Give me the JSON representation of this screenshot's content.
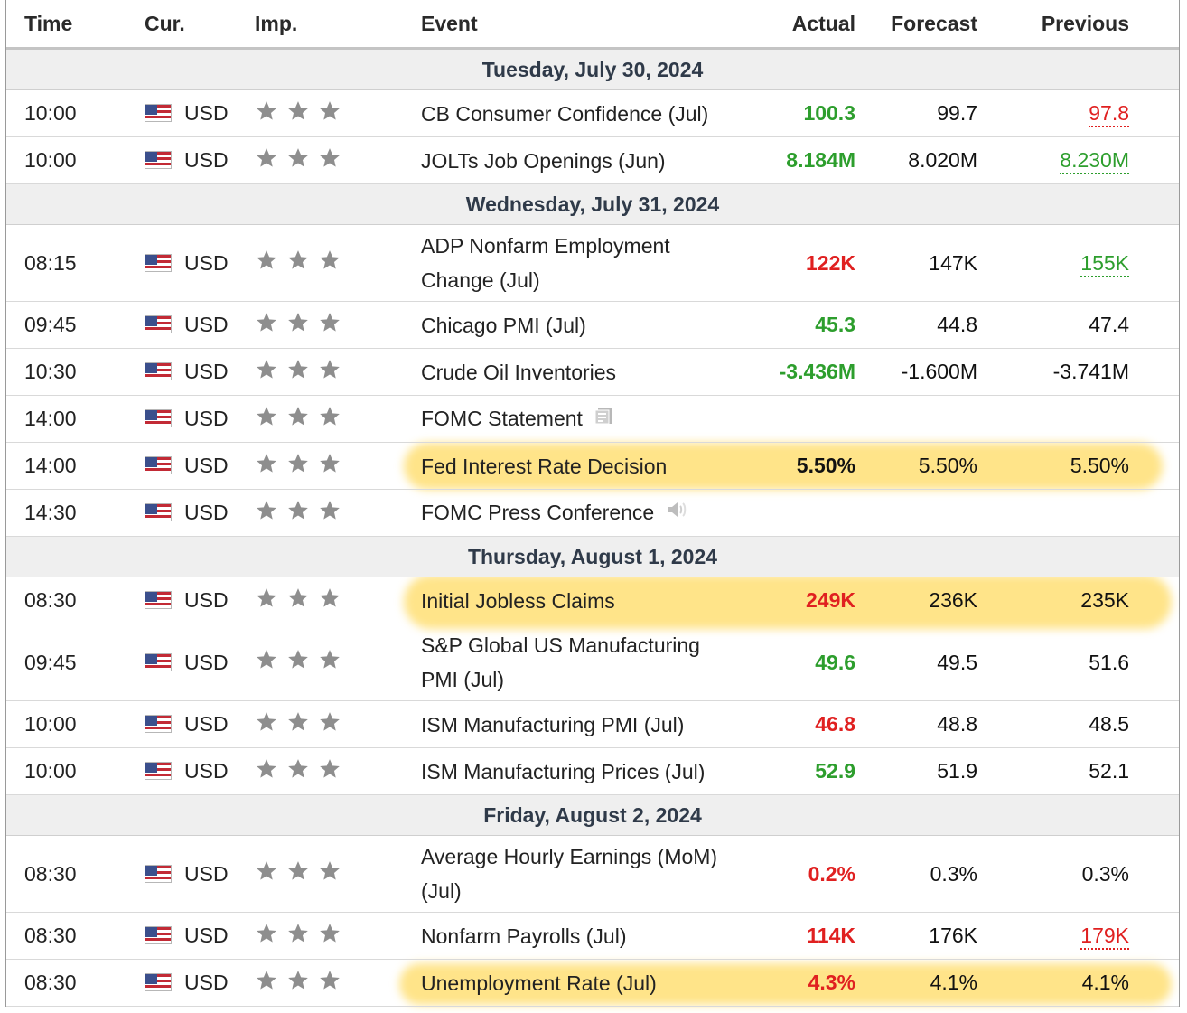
{
  "header": {
    "time": "Time",
    "currency": "Cur.",
    "importance": "Imp.",
    "event": "Event",
    "actual": "Actual",
    "forecast": "Forecast",
    "previous": "Previous"
  },
  "colors": {
    "positive": "#2d9e2d",
    "negative": "#e02020",
    "highlight": "#ffcd28",
    "day_header_bg": "#efefef"
  },
  "days": [
    {
      "label": "Tuesday, July 30, 2024",
      "events": [
        {
          "time": "10:00",
          "currency": "USD",
          "importance_stars": 3,
          "event": "CB Consumer Confidence (Jul)",
          "actual": "100.3",
          "actual_color": "green",
          "forecast": "99.7",
          "previous": "97.8",
          "previous_color": "red",
          "previous_revised": true
        },
        {
          "time": "10:00",
          "currency": "USD",
          "importance_stars": 3,
          "event": "JOLTs Job Openings (Jun)",
          "actual": "8.184M",
          "actual_color": "green",
          "forecast": "8.020M",
          "previous": "8.230M",
          "previous_color": "green",
          "previous_revised": true
        }
      ]
    },
    {
      "label": "Wednesday, July 31, 2024",
      "events": [
        {
          "time": "08:15",
          "currency": "USD",
          "importance_stars": 3,
          "event_line1": "ADP Nonfarm Employment",
          "event_line2": "Change (Jul)",
          "actual": "122K",
          "actual_color": "red",
          "forecast": "147K",
          "previous": "155K",
          "previous_color": "green",
          "previous_revised": true
        },
        {
          "time": "09:45",
          "currency": "USD",
          "importance_stars": 3,
          "event": "Chicago PMI (Jul)",
          "actual": "45.3",
          "actual_color": "green",
          "forecast": "44.8",
          "previous": "47.4"
        },
        {
          "time": "10:30",
          "currency": "USD",
          "importance_stars": 3,
          "event": "Crude Oil Inventories",
          "actual": "-3.436M",
          "actual_color": "green",
          "forecast": "-1.600M",
          "previous": "-3.741M"
        },
        {
          "time": "14:00",
          "currency": "USD",
          "importance_stars": 3,
          "event": "FOMC Statement",
          "icon": "document-icon",
          "actual": "",
          "forecast": "",
          "previous": ""
        },
        {
          "time": "14:00",
          "currency": "USD",
          "importance_stars": 3,
          "event": "Fed Interest Rate Decision",
          "actual": "5.50%",
          "actual_color": "black",
          "forecast": "5.50%",
          "previous": "5.50%",
          "highlighted": true
        },
        {
          "time": "14:30",
          "currency": "USD",
          "importance_stars": 3,
          "event": "FOMC Press Conference",
          "icon": "speaker-icon",
          "actual": "",
          "forecast": "",
          "previous": ""
        }
      ]
    },
    {
      "label": "Thursday, August 1, 2024",
      "events": [
        {
          "time": "08:30",
          "currency": "USD",
          "importance_stars": 3,
          "event": "Initial Jobless Claims",
          "actual": "249K",
          "actual_color": "red",
          "forecast": "236K",
          "previous": "235K",
          "highlighted": true
        },
        {
          "time": "09:45",
          "currency": "USD",
          "importance_stars": 3,
          "event_line1": "S&P Global US Manufacturing",
          "event_line2": "PMI (Jul)",
          "actual": "49.6",
          "actual_color": "green",
          "forecast": "49.5",
          "previous": "51.6"
        },
        {
          "time": "10:00",
          "currency": "USD",
          "importance_stars": 3,
          "event": "ISM Manufacturing PMI (Jul)",
          "actual": "46.8",
          "actual_color": "red",
          "forecast": "48.8",
          "previous": "48.5"
        },
        {
          "time": "10:00",
          "currency": "USD",
          "importance_stars": 3,
          "event": "ISM Manufacturing Prices (Jul)",
          "actual": "52.9",
          "actual_color": "green",
          "forecast": "51.9",
          "previous": "52.1"
        }
      ]
    },
    {
      "label": "Friday, August 2, 2024",
      "events": [
        {
          "time": "08:30",
          "currency": "USD",
          "importance_stars": 3,
          "event_line1": "Average Hourly Earnings (MoM)",
          "event_line2": "(Jul)",
          "actual": "0.2%",
          "actual_color": "red",
          "forecast": "0.3%",
          "previous": "0.3%"
        },
        {
          "time": "08:30",
          "currency": "USD",
          "importance_stars": 3,
          "event": "Nonfarm Payrolls (Jul)",
          "actual": "114K",
          "actual_color": "red",
          "forecast": "176K",
          "previous": "179K",
          "previous_color": "red",
          "previous_revised": true
        },
        {
          "time": "08:30",
          "currency": "USD",
          "importance_stars": 3,
          "event": "Unemployment Rate (Jul)",
          "actual": "4.3%",
          "actual_color": "red",
          "forecast": "4.1%",
          "previous": "4.1%",
          "highlighted": true
        }
      ]
    }
  ]
}
